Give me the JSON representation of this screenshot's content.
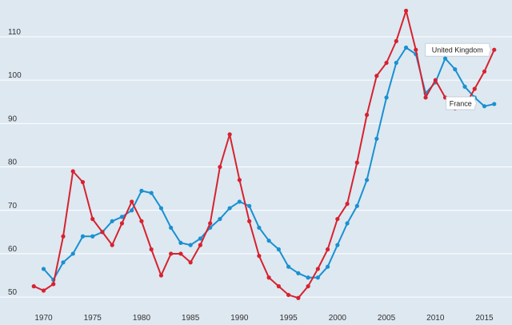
{
  "chart_data": {
    "type": "line",
    "title": "",
    "xlabel": "",
    "ylabel": "",
    "xlim": [
      1968,
      2017
    ],
    "ylim": [
      48,
      117
    ],
    "grid": true,
    "x_ticks": [
      1970,
      1975,
      1980,
      1985,
      1990,
      1995,
      2000,
      2005,
      2010,
      2015
    ],
    "y_ticks": [
      50,
      60,
      70,
      80,
      90,
      100,
      110
    ],
    "series": [
      {
        "name": "United Kingdom",
        "color": "#d7222f",
        "x": [
          1969,
          1970,
          1971,
          1972,
          1973,
          1974,
          1975,
          1976,
          1977,
          1978,
          1979,
          1980,
          1981,
          1982,
          1983,
          1984,
          1985,
          1986,
          1987,
          1988,
          1989,
          1990,
          1991,
          1992,
          1993,
          1994,
          1995,
          1996,
          1997,
          1998,
          1999,
          2000,
          2001,
          2002,
          2003,
          2004,
          2005,
          2006,
          2007,
          2008,
          2009,
          2010,
          2011,
          2012,
          2013,
          2014,
          2015,
          2016
        ],
        "values": [
          52.5,
          51.5,
          53,
          64,
          79,
          76.5,
          68,
          65,
          62,
          67,
          72,
          67.5,
          61,
          55,
          60,
          60,
          58,
          62,
          67,
          80,
          87.5,
          77,
          67.5,
          59.5,
          54.5,
          52.5,
          50.5,
          49.8,
          52.5,
          56.5,
          61,
          68,
          71.5,
          81,
          92,
          101,
          104,
          109,
          116,
          107,
          96,
          100,
          96,
          93.5,
          94,
          98,
          102,
          107
        ]
      },
      {
        "name": "France",
        "color": "#1a90d0",
        "x": [
          1970,
          1971,
          1972,
          1973,
          1974,
          1975,
          1976,
          1977,
          1978,
          1979,
          1980,
          1981,
          1982,
          1983,
          1984,
          1985,
          1986,
          1987,
          1988,
          1989,
          1990,
          1991,
          1992,
          1993,
          1994,
          1995,
          1996,
          1997,
          1998,
          1999,
          2000,
          2001,
          2002,
          2003,
          2004,
          2005,
          2006,
          2007,
          2008,
          2009,
          2010,
          2011,
          2012,
          2013,
          2014,
          2015,
          2016
        ],
        "values": [
          56.5,
          54,
          58,
          60,
          64,
          64,
          65,
          67.5,
          68.5,
          70,
          74.5,
          74,
          70.5,
          66,
          62.5,
          62,
          63.5,
          66,
          68,
          70.5,
          72,
          71,
          66,
          63,
          61,
          57,
          55.5,
          54.5,
          54.5,
          57,
          62,
          67,
          71,
          77,
          86.5,
          96,
          104,
          107.5,
          106,
          97,
          99.5,
          105,
          102.5,
          98.5,
          96,
          94,
          94.5
        ]
      }
    ]
  }
}
